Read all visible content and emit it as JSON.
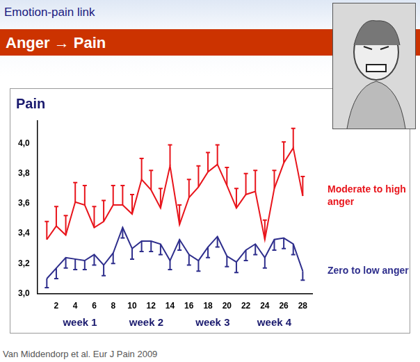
{
  "section_title": "Emotion-pain link",
  "slide_title": "Anger → Pain",
  "source": "Van Middendorp et al. Eur J Pain 2009",
  "chart_data": {
    "type": "line",
    "title": "Pain",
    "x": [
      1,
      2,
      3,
      4,
      5,
      6,
      7,
      8,
      9,
      10,
      11,
      12,
      13,
      14,
      15,
      16,
      17,
      18,
      19,
      20,
      21,
      22,
      23,
      24,
      25,
      26,
      27,
      28
    ],
    "xlim": [
      0,
      29
    ],
    "xticks": [
      2,
      4,
      6,
      8,
      10,
      12,
      14,
      16,
      18,
      20,
      22,
      24,
      26,
      28
    ],
    "ylim": [
      3,
      4.15
    ],
    "yticks": [
      {
        "value": 3,
        "label": "3,0"
      },
      {
        "value": 3.2,
        "label": "3,2"
      },
      {
        "value": 3.4,
        "label": "3,4"
      },
      {
        "value": 3.6,
        "label": "3,6"
      },
      {
        "value": 3.8,
        "label": "3,8"
      },
      {
        "value": 4,
        "label": "4,0"
      }
    ],
    "grid": false,
    "legend": "right",
    "annotations": [
      {
        "text": "week 1",
        "x": 4.5
      },
      {
        "text": "week 2",
        "x": 11.5
      },
      {
        "text": "week 3",
        "x": 18.5
      },
      {
        "text": "week 4",
        "x": 25
      }
    ],
    "series": [
      {
        "name": "Moderate to high anger",
        "color": "#e8141b",
        "values": [
          3.36,
          3.45,
          3.39,
          3.61,
          3.59,
          3.44,
          3.48,
          3.59,
          3.59,
          3.53,
          3.76,
          3.69,
          3.57,
          3.85,
          3.46,
          3.64,
          3.71,
          3.81,
          3.86,
          3.72,
          3.57,
          3.66,
          3.68,
          3.36,
          3.7,
          3.87,
          3.97,
          3.65
        ],
        "errors_up": [
          0.12,
          0.13,
          0.13,
          0.13,
          0.13,
          0.14,
          0.14,
          0.13,
          0.13,
          0.13,
          0.14,
          0.13,
          0.13,
          0.14,
          0.13,
          0.12,
          0.14,
          0.13,
          0.13,
          0.12,
          0.13,
          0.14,
          0.14,
          0.13,
          0.12,
          0.14,
          0.13,
          0.13
        ]
      },
      {
        "name": "Zero to low anger",
        "color": "#2e2e8c",
        "values": [
          3.1,
          3.17,
          3.24,
          3.23,
          3.22,
          3.26,
          3.19,
          3.27,
          3.44,
          3.3,
          3.35,
          3.35,
          3.33,
          3.22,
          3.36,
          3.26,
          3.22,
          3.31,
          3.38,
          3.25,
          3.21,
          3.29,
          3.33,
          3.24,
          3.36,
          3.37,
          3.33,
          3.15
        ],
        "errors_down": [
          0.06,
          0.07,
          0.07,
          0.07,
          0.06,
          0.07,
          0.07,
          0.07,
          0.07,
          0.07,
          0.07,
          0.07,
          0.07,
          0.06,
          0.07,
          0.07,
          0.07,
          0.07,
          0.07,
          0.07,
          0.07,
          0.07,
          0.07,
          0.07,
          0.07,
          0.07,
          0.07,
          0.06
        ]
      }
    ]
  }
}
